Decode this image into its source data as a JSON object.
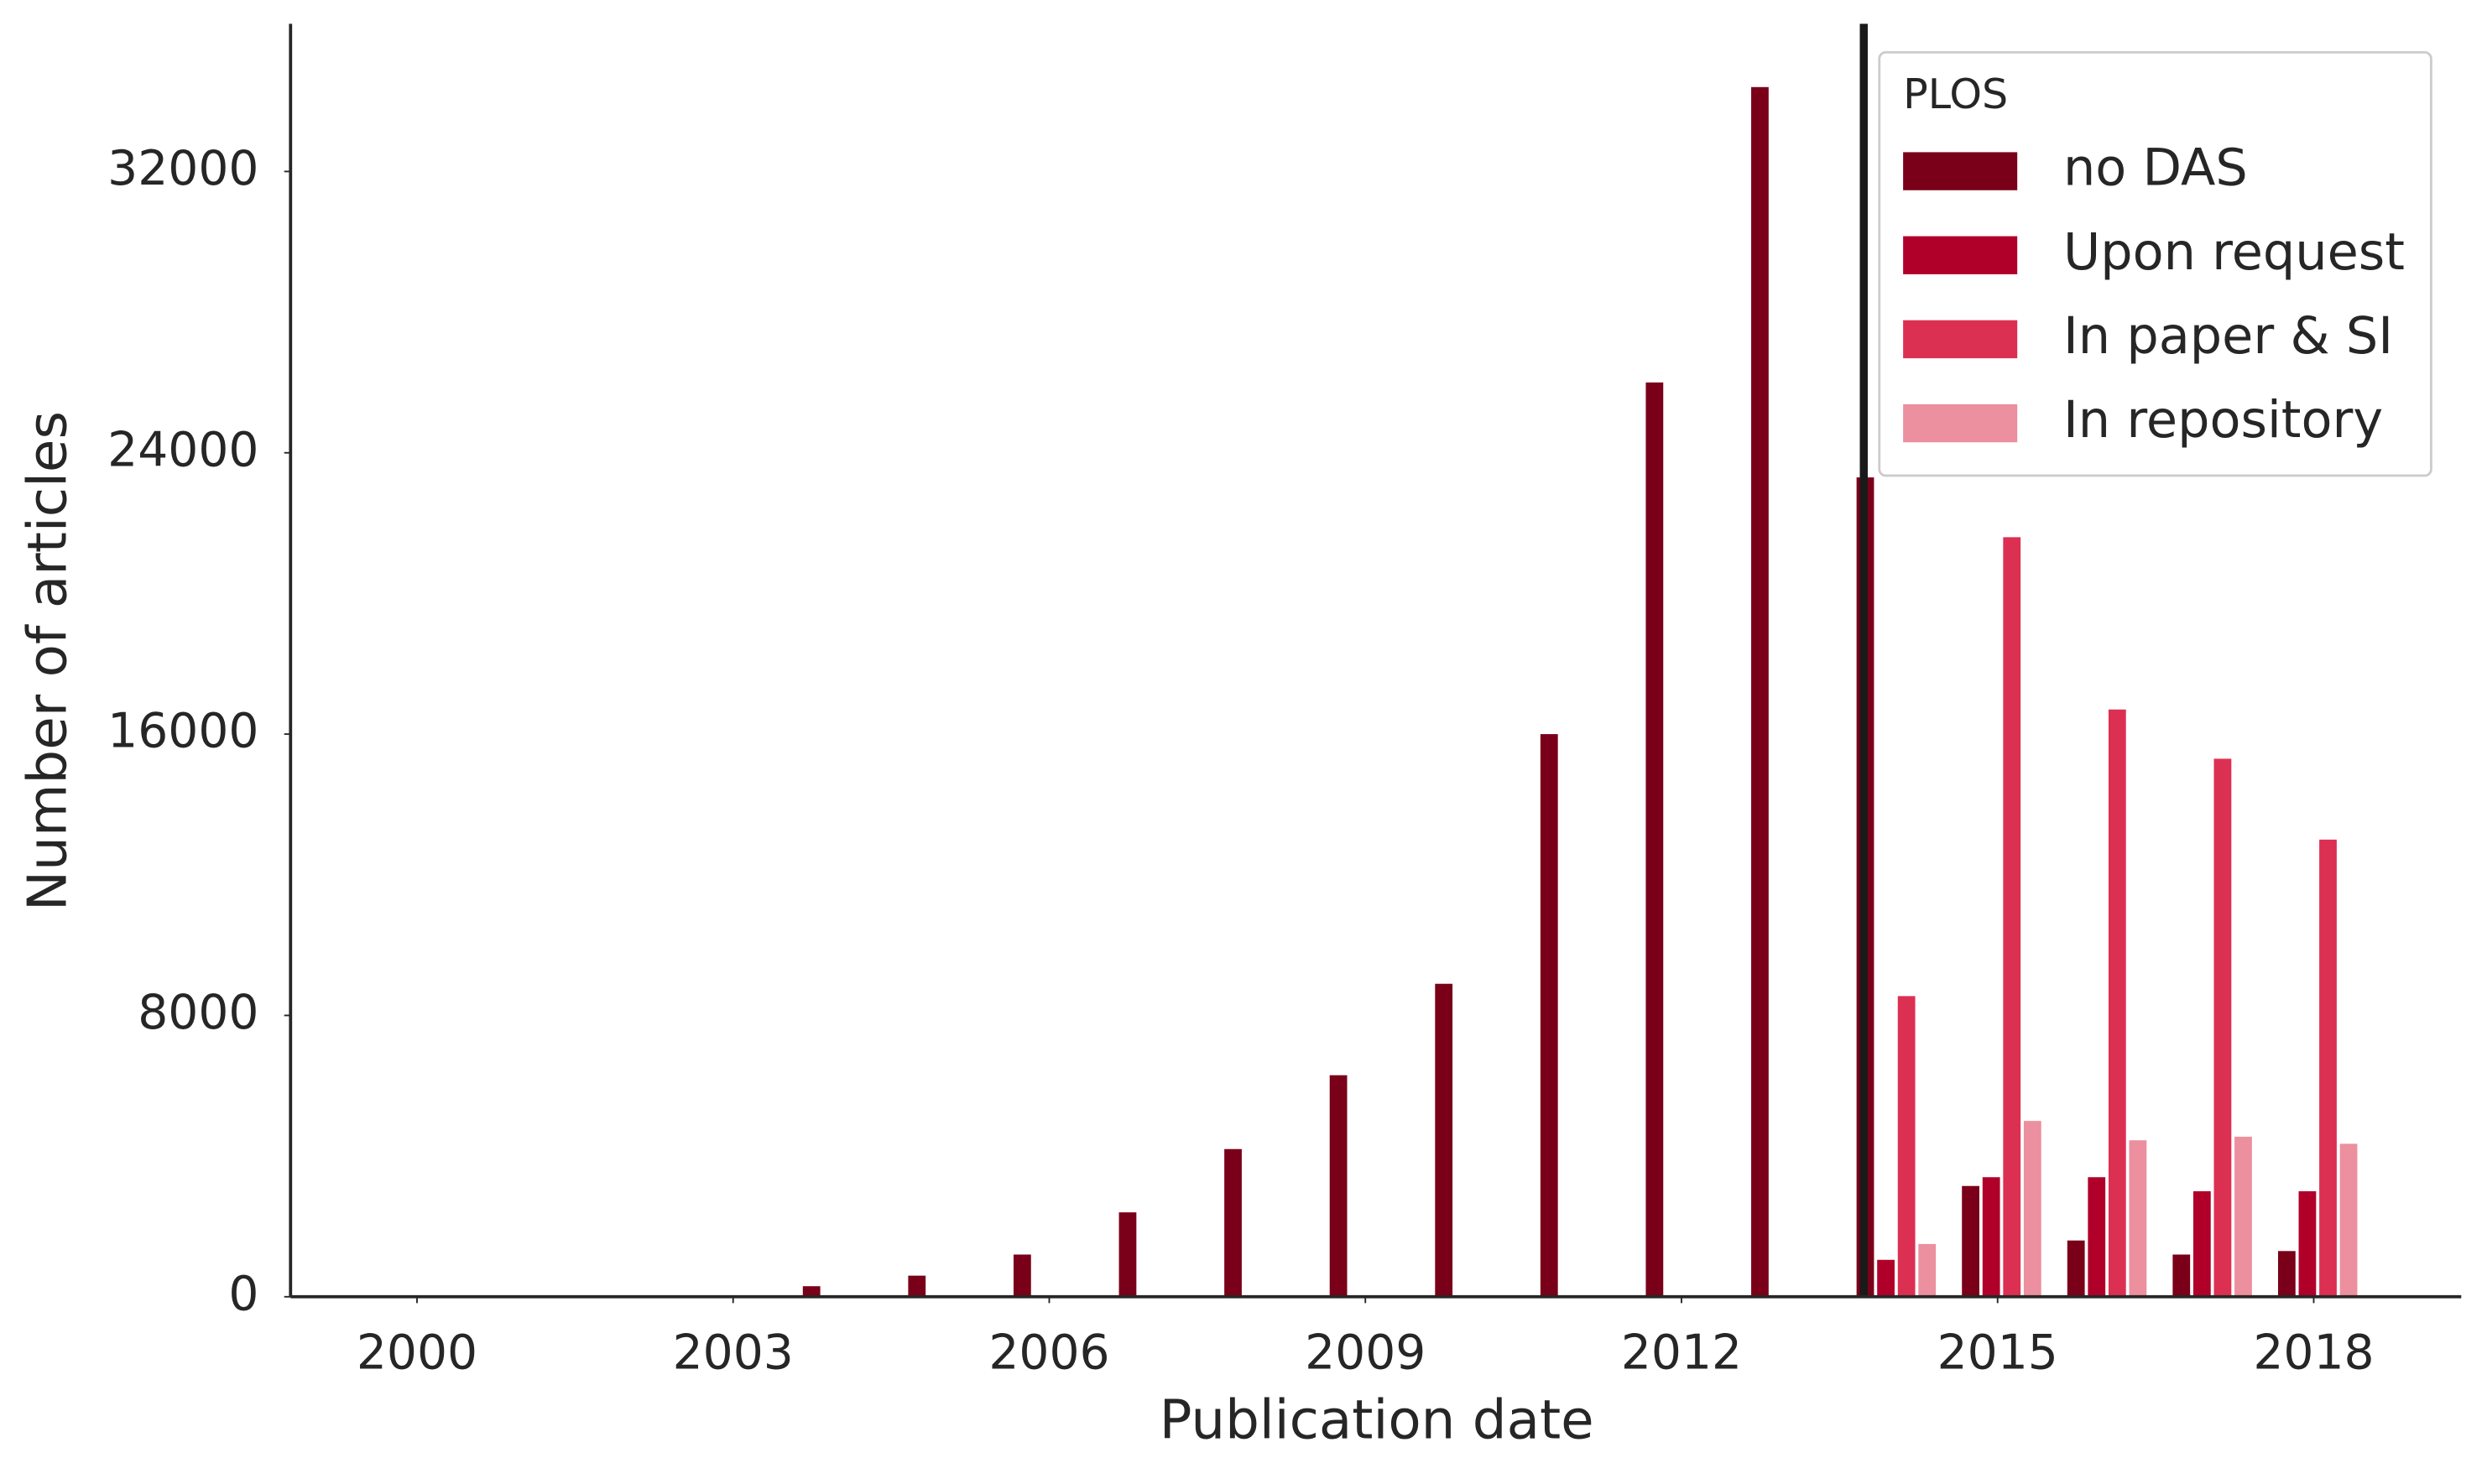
{
  "chart_data": {
    "type": "bar",
    "xlabel": "Publication date",
    "ylabel": "Number of articles",
    "x": [
      2000,
      2001,
      2002,
      2003,
      2004,
      2005,
      2006,
      2007,
      2008,
      2009,
      2010,
      2011,
      2012,
      2013,
      2014,
      2015,
      2016,
      2017,
      2018
    ],
    "series": [
      {
        "name": "no DAS",
        "color": "#7a0019",
        "values": [
          null,
          null,
          null,
          null,
          300,
          600,
          1200,
          2400,
          4200,
          6300,
          8900,
          16000,
          26000,
          34400,
          23300,
          3150,
          1600,
          1200,
          1300
        ]
      },
      {
        "name": "Upon request",
        "color": "#b0002a",
        "values": [
          null,
          null,
          null,
          null,
          null,
          null,
          null,
          null,
          null,
          null,
          null,
          null,
          null,
          null,
          1050,
          3400,
          3400,
          3000,
          3000
        ]
      },
      {
        "name": "In paper & SI",
        "color": "#dc3052",
        "values": [
          null,
          null,
          null,
          null,
          null,
          null,
          null,
          null,
          null,
          null,
          null,
          null,
          null,
          null,
          8550,
          21600,
          16700,
          15300,
          13000
        ]
      },
      {
        "name": "In repository",
        "color": "#ec8f9e",
        "values": [
          null,
          null,
          null,
          null,
          null,
          null,
          null,
          null,
          null,
          null,
          null,
          null,
          null,
          null,
          1500,
          5000,
          4450,
          4550,
          4350
        ]
      }
    ],
    "legend_title": "PLOS",
    "legend": "upper right",
    "xlim": [
      1998.8,
      2019.4
    ],
    "xticks": [
      2000,
      2003,
      2006,
      2009,
      2012,
      2015,
      2018
    ],
    "ylim": [
      0,
      36200
    ],
    "yticks": [
      0,
      8000,
      16000,
      24000,
      32000
    ],
    "vline": 2013.73
  }
}
